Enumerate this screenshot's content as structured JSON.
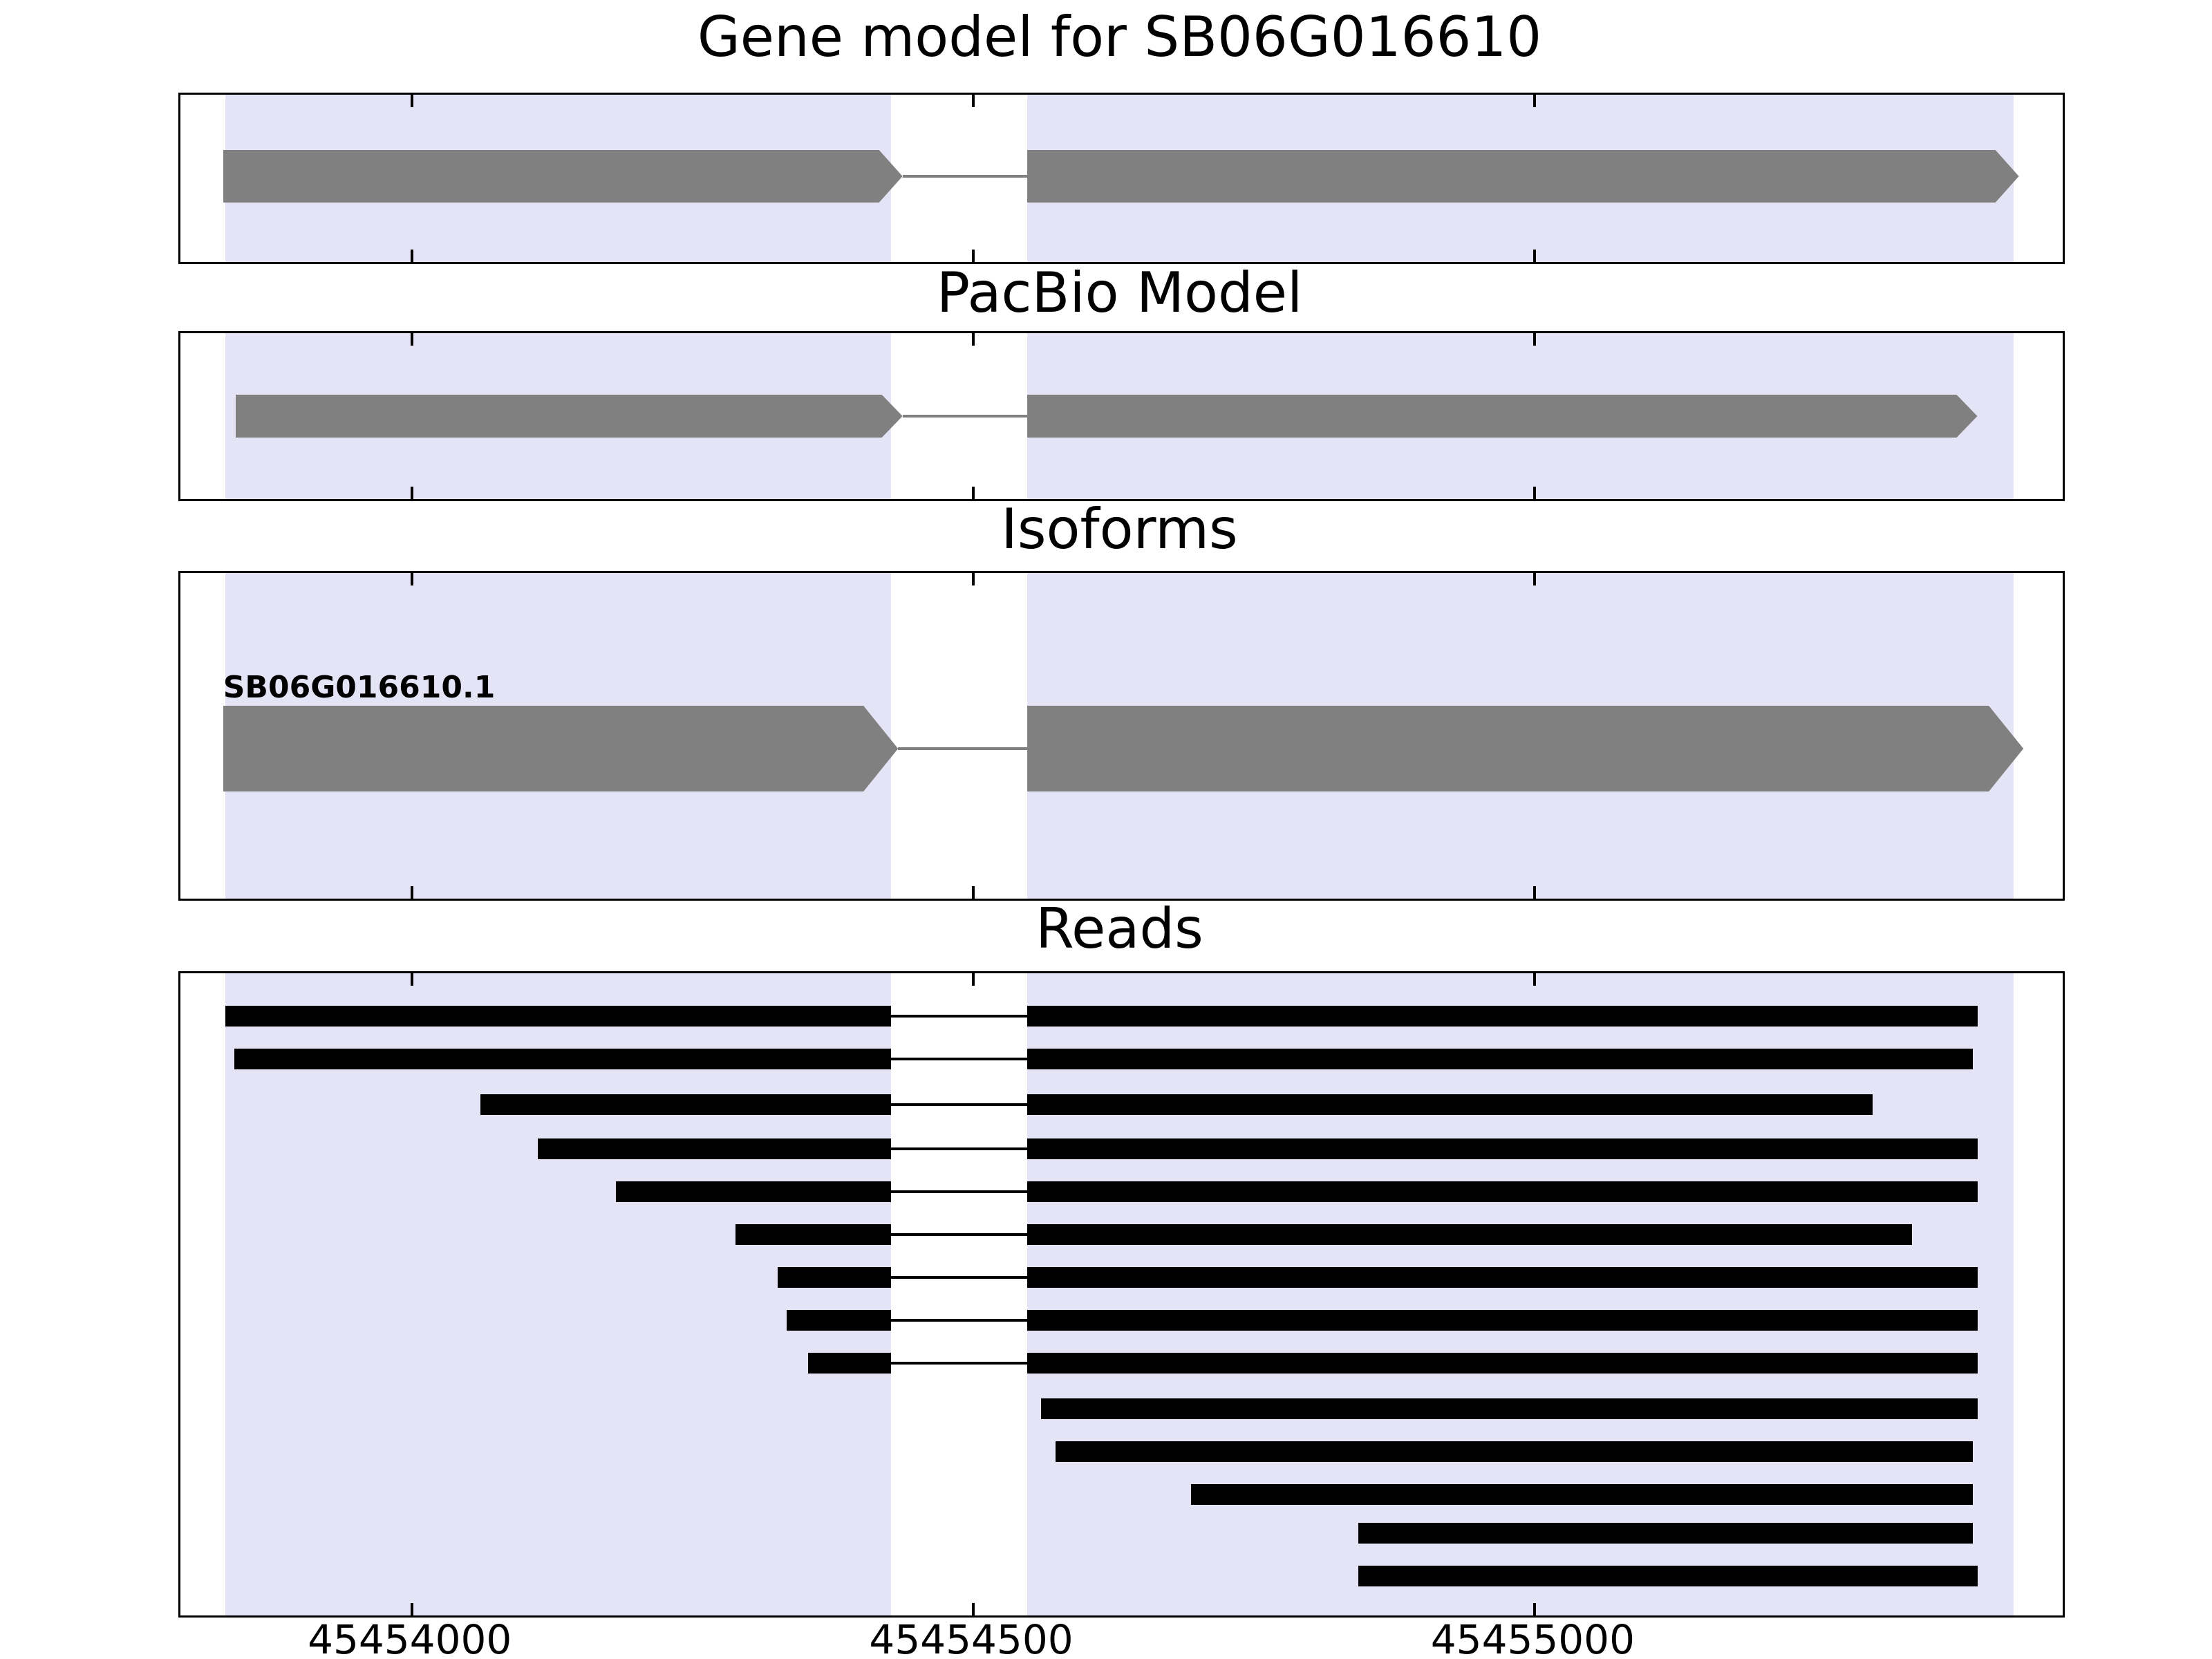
{
  "figure": {
    "background_color": "#ffffff",
    "axis_border_color": "#000000"
  },
  "chart_data": {
    "type": "gene-model-read-tracks",
    "title": "Gene model for SB06G016610",
    "x_axis": {
      "xlim": [
        45453794,
        45455470
      ],
      "ticks": [
        45454000,
        45454500,
        45455000
      ],
      "tick_labels": [
        "45454000",
        "45454500",
        "45455000"
      ]
    },
    "highlight_color": "#e4e4f6",
    "highlight_regions": [
      {
        "start": 45453834,
        "end": 45454427
      },
      {
        "start": 45454548,
        "end": 45455426
      }
    ],
    "panels": [
      {
        "title": "Gene model for SB06G016610",
        "kind": "gene_model",
        "color": "#808080",
        "strand": "+",
        "exons": [
          [
            45453832,
            45454437
          ],
          [
            45454548,
            45455431
          ]
        ],
        "intron": [
          45454437,
          45454548
        ]
      },
      {
        "title": "PacBio Model",
        "kind": "gene_model",
        "color": "#808080",
        "strand": "+",
        "exons": [
          [
            45453843,
            45454437
          ],
          [
            45454548,
            45455394
          ]
        ],
        "intron": [
          45454437,
          45454548
        ]
      },
      {
        "title": "Isoforms",
        "kind": "isoforms",
        "isoforms": [
          {
            "label": "SB06G016610.1",
            "color": "#808080",
            "strand": "+",
            "exons": [
              [
                45453832,
                45454433
              ],
              [
                45454548,
                45455435
              ]
            ],
            "intron": [
              45454433,
              45454548
            ]
          }
        ]
      },
      {
        "title": "Reads",
        "kind": "reads",
        "color": "#000000",
        "reads": [
          {
            "segments": [
              [
                45453834,
                45454427
              ],
              [
                45454548,
                45455394
              ]
            ]
          },
          {
            "segments": [
              [
                45453842,
                45454427
              ],
              [
                45454548,
                45455390
              ]
            ]
          },
          {
            "segments": [
              [
                45454061,
                45454427
              ],
              [
                45454548,
                45455301
              ]
            ]
          },
          {
            "segments": [
              [
                45454112,
                45454427
              ],
              [
                45454548,
                45455394
              ]
            ]
          },
          {
            "segments": [
              [
                45454182,
                45454427
              ],
              [
                45454548,
                45455394
              ]
            ]
          },
          {
            "segments": [
              [
                45454288,
                45454427
              ],
              [
                45454548,
                45455336
              ]
            ]
          },
          {
            "segments": [
              [
                45454326,
                45454427
              ],
              [
                45454548,
                45455394
              ]
            ]
          },
          {
            "segments": [
              [
                45454334,
                45454427
              ],
              [
                45454548,
                45455394
              ]
            ]
          },
          {
            "segments": [
              [
                45454353,
                45454427
              ],
              [
                45454548,
                45455394
              ]
            ]
          },
          {
            "segments": [
              [
                45454560,
                45455394
              ]
            ]
          },
          {
            "segments": [
              [
                45454573,
                45455390
              ]
            ]
          },
          {
            "segments": [
              [
                45454694,
                45455390
              ]
            ]
          },
          {
            "segments": [
              [
                45454843,
                45455390
              ]
            ]
          },
          {
            "segments": [
              [
                45454843,
                45455394
              ]
            ]
          }
        ]
      }
    ]
  }
}
